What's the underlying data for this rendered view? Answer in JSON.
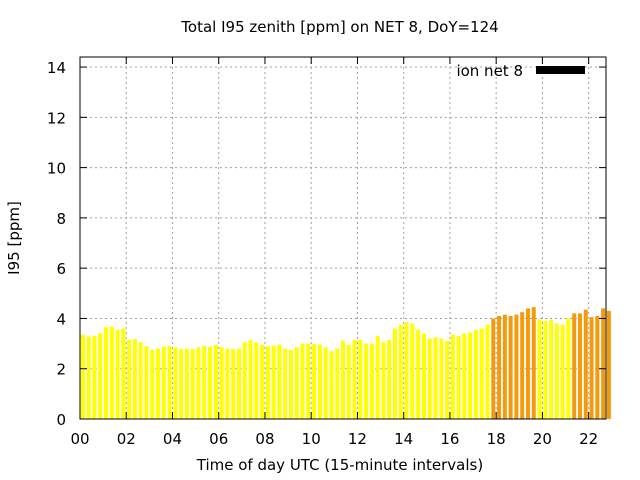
{
  "chart_data": {
    "type": "bar",
    "title": "Total I95 zenith [ppm] on NET 8, DoY=124",
    "xlabel": "Time of day UTC (15-minute intervals)",
    "ylabel": "I95 [ppm]",
    "xlim": [
      0,
      22.75
    ],
    "ylim": [
      0,
      14.4
    ],
    "xticks": [
      "00",
      "02",
      "04",
      "06",
      "08",
      "10",
      "12",
      "14",
      "16",
      "18",
      "20",
      "22"
    ],
    "yticks": [
      "0",
      "2",
      "4",
      "6",
      "8",
      "10",
      "12",
      "14"
    ],
    "grid": true,
    "legend": {
      "label": "ion net 8",
      "position": "top-right",
      "color": "#000000"
    },
    "bin_hours": 0.25,
    "values": [
      3.35,
      3.28,
      3.31,
      3.42,
      3.65,
      3.68,
      3.55,
      3.6,
      3.15,
      3.18,
      3.05,
      2.9,
      2.75,
      2.8,
      2.88,
      2.9,
      2.85,
      2.78,
      2.8,
      2.78,
      2.85,
      2.9,
      2.88,
      2.95,
      2.85,
      2.8,
      2.78,
      2.8,
      3.05,
      3.15,
      3.05,
      2.95,
      2.9,
      2.92,
      2.95,
      2.8,
      2.75,
      2.85,
      3.0,
      3.0,
      2.98,
      2.95,
      2.85,
      2.7,
      2.8,
      3.12,
      2.95,
      3.15,
      3.15,
      3.0,
      3.0,
      3.3,
      3.05,
      3.15,
      3.6,
      3.75,
      3.85,
      3.8,
      3.55,
      3.4,
      3.2,
      3.25,
      3.2,
      3.1,
      3.35,
      3.3,
      3.4,
      3.45,
      3.55,
      3.6,
      3.75,
      4.0,
      4.1,
      4.15,
      4.1,
      4.15,
      4.25,
      4.4,
      4.45,
      3.95,
      3.9,
      3.95,
      3.8,
      3.75,
      4.0,
      4.2,
      4.2,
      4.35,
      4.05,
      4.1,
      4.4,
      4.3
    ],
    "colors": [
      "#ffff00",
      "#ffff00",
      "#ffff00",
      "#ffff00",
      "#ffff00",
      "#ffff00",
      "#ffff00",
      "#ffff00",
      "#ffff00",
      "#ffff00",
      "#ffff00",
      "#ffff00",
      "#ffff00",
      "#ffff00",
      "#ffff00",
      "#ffff00",
      "#ffff00",
      "#ffff00",
      "#ffff00",
      "#ffff00",
      "#ffff00",
      "#ffff00",
      "#ffff00",
      "#ffff00",
      "#ffff00",
      "#ffff00",
      "#ffff00",
      "#ffff00",
      "#ffff00",
      "#ffff00",
      "#ffff00",
      "#ffff00",
      "#ffff00",
      "#ffff00",
      "#ffff00",
      "#ffff00",
      "#ffff00",
      "#ffff00",
      "#ffff00",
      "#ffff00",
      "#ffff00",
      "#ffff00",
      "#ffff00",
      "#ffff00",
      "#ffff00",
      "#ffff00",
      "#ffff00",
      "#ffff00",
      "#ffff00",
      "#ffff00",
      "#ffff00",
      "#ffff00",
      "#ffff00",
      "#ffff00",
      "#ffff00",
      "#ffff00",
      "#ffff00",
      "#ffff00",
      "#ffff00",
      "#ffff00",
      "#ffff00",
      "#ffff00",
      "#ffff00",
      "#ffff00",
      "#ffff00",
      "#ffff00",
      "#ffff00",
      "#ffff00",
      "#ffff00",
      "#ffff00",
      "#ffff00",
      "#f59a0b",
      "#f59a0b",
      "#f59a0b",
      "#f59a0b",
      "#f59a0b",
      "#f59a0b",
      "#f59a0b",
      "#f59a0b",
      "#ffff00",
      "#ffff00",
      "#ffff00",
      "#ffff00",
      "#ffff00",
      "#ffff00",
      "#f59a0b",
      "#f59a0b",
      "#f59a0b",
      "#f59a0b",
      "#f59a0b",
      "#f59a0b",
      "#f59a0b"
    ]
  }
}
